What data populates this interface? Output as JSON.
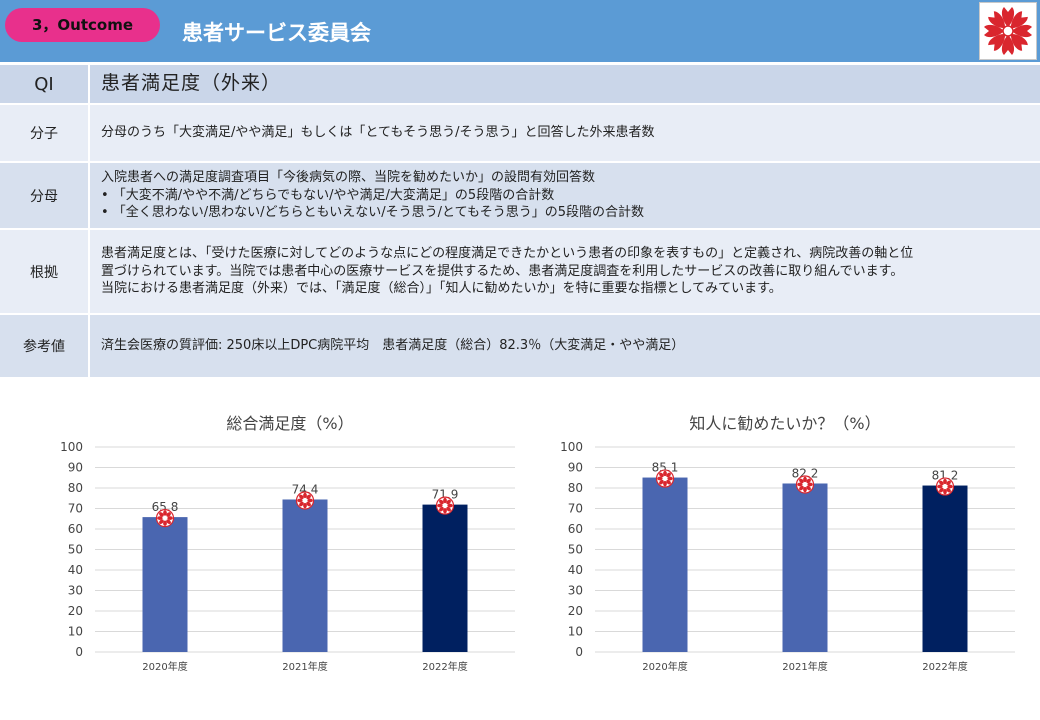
{
  "header": {
    "badge": "3，Outcome",
    "title": "患者サービス委員会",
    "logo_icon": "hospital-emblem-icon"
  },
  "table": {
    "qi": {
      "label": "QI",
      "value": "患者満足度（外来）"
    },
    "numerator": {
      "label": "分子",
      "text": "分母のうち「大変満足/やや満足」もしくは「とてもそう思う/そう思う」と回答した外来患者数"
    },
    "denominator": {
      "label": "分母",
      "lines": [
        "入院患者への満足度調査項目「今後病気の際、当院を勧めたいか」の設問有効回答数",
        "• 「大変不満/やや不満/どちらでもない/やや満足/大変満足」の5段階の合計数",
        "• 「全く思わない/思わない/どちらともいえない/そう思う/とてもそう思う」の5段階の合計数"
      ]
    },
    "basis": {
      "label": "根拠",
      "lines": [
        "患者満足度とは、「受けた医療に対してどのような点にどの程度満足できたかという患者の印象を表すもの」と定義され、病院改善の軸と位",
        "置づけられています。当院では患者中心の医療サービスを提供するため、患者満足度調査を利用したサービスの改善に取り組んでいます。",
        "当院における患者満足度（外来）では、「満足度（総合）」「知人に勧めたいか」を特に重要な指標としてみています。"
      ]
    },
    "reference": {
      "label": "参考値",
      "text": "済生会医療の質評価: 250床以上DPC病院平均　患者満足度（総合）82.3％（大変満足・やや満足）"
    }
  },
  "chart_data": [
    {
      "type": "bar",
      "title": "総合満足度（%）",
      "categories": [
        "2020年度",
        "2021年度",
        "2022年度"
      ],
      "values": [
        65.8,
        74.4,
        71.9
      ],
      "colors": [
        "#4a66b0",
        "#4a66b0",
        "#002060"
      ],
      "ylim": [
        0,
        100
      ],
      "yticks": [
        0,
        10,
        20,
        30,
        40,
        50,
        60,
        70,
        80,
        90,
        100
      ],
      "grid": true,
      "marker_icon": "hospital-emblem-icon"
    },
    {
      "type": "bar",
      "title": "知人に勧めたいか？（%）",
      "categories": [
        "2020年度",
        "2021年度",
        "2022年度"
      ],
      "values": [
        85.1,
        82.2,
        81.2
      ],
      "colors": [
        "#4a66b0",
        "#4a66b0",
        "#002060"
      ],
      "ylim": [
        0,
        100
      ],
      "yticks": [
        0,
        10,
        20,
        30,
        40,
        50,
        60,
        70,
        80,
        90,
        100
      ],
      "grid": true,
      "marker_icon": "hospital-emblem-icon"
    }
  ]
}
